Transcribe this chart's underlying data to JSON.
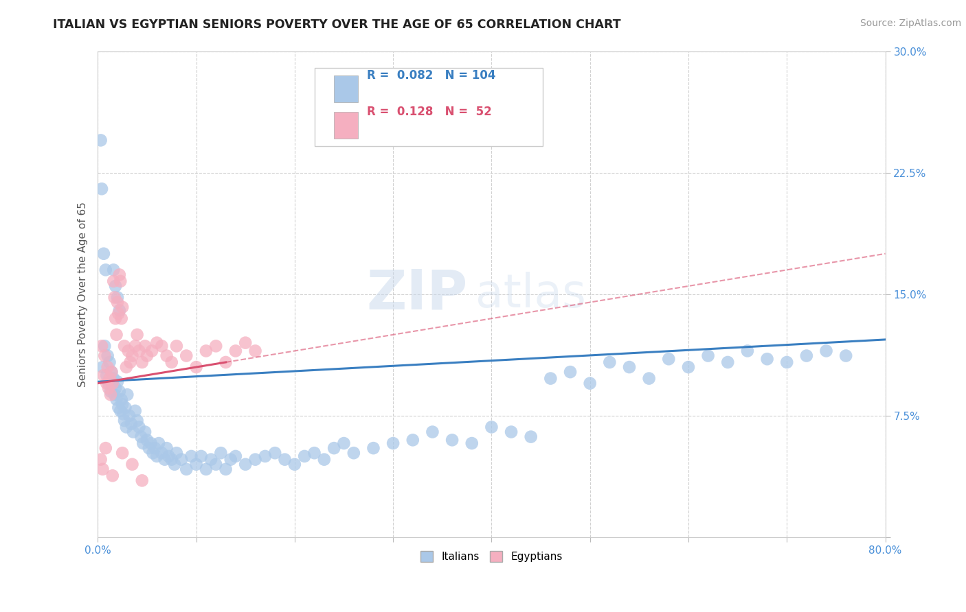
{
  "title": "ITALIAN VS EGYPTIAN SENIORS POVERTY OVER THE AGE OF 65 CORRELATION CHART",
  "source": "Source: ZipAtlas.com",
  "ylabel_label": "Seniors Poverty Over the Age of 65",
  "xlim": [
    0.0,
    0.8
  ],
  "ylim": [
    0.0,
    0.3
  ],
  "xticks": [
    0.0,
    0.1,
    0.2,
    0.3,
    0.4,
    0.5,
    0.6,
    0.7,
    0.8
  ],
  "yticks": [
    0.0,
    0.075,
    0.15,
    0.225,
    0.3
  ],
  "xticklabels_show": [
    "0.0%",
    "",
    "",
    "",
    "",
    "",
    "",
    "",
    "80.0%"
  ],
  "yticklabels": [
    "",
    "7.5%",
    "15.0%",
    "22.5%",
    "30.0%"
  ],
  "italian_R": 0.082,
  "italian_N": 104,
  "egyptian_R": 0.128,
  "egyptian_N": 52,
  "italian_color": "#aac8e8",
  "egyptian_color": "#f5afc0",
  "italian_line_color": "#3a7fc1",
  "egyptian_line_color": "#d95070",
  "watermark_zip": "ZIP",
  "watermark_atlas": "atlas",
  "background_color": "#ffffff",
  "legend_italian_label": "Italians",
  "legend_egyptian_label": "Egyptians",
  "italian_scatter_x": [
    0.005,
    0.007,
    0.009,
    0.01,
    0.011,
    0.012,
    0.013,
    0.014,
    0.015,
    0.016,
    0.017,
    0.018,
    0.019,
    0.02,
    0.021,
    0.022,
    0.023,
    0.024,
    0.025,
    0.026,
    0.027,
    0.028,
    0.029,
    0.03,
    0.032,
    0.034,
    0.036,
    0.038,
    0.04,
    0.042,
    0.044,
    0.046,
    0.048,
    0.05,
    0.052,
    0.054,
    0.056,
    0.058,
    0.06,
    0.062,
    0.065,
    0.068,
    0.07,
    0.072,
    0.075,
    0.078,
    0.08,
    0.085,
    0.09,
    0.095,
    0.1,
    0.105,
    0.11,
    0.115,
    0.12,
    0.125,
    0.13,
    0.135,
    0.14,
    0.15,
    0.16,
    0.17,
    0.18,
    0.19,
    0.2,
    0.21,
    0.22,
    0.23,
    0.24,
    0.25,
    0.26,
    0.28,
    0.3,
    0.32,
    0.34,
    0.36,
    0.38,
    0.4,
    0.42,
    0.44,
    0.46,
    0.48,
    0.5,
    0.52,
    0.54,
    0.56,
    0.58,
    0.6,
    0.62,
    0.64,
    0.66,
    0.68,
    0.7,
    0.72,
    0.74,
    0.76,
    0.003,
    0.004,
    0.006,
    0.008,
    0.016,
    0.018,
    0.02,
    0.022
  ],
  "italian_scatter_y": [
    0.105,
    0.118,
    0.1,
    0.112,
    0.095,
    0.108,
    0.09,
    0.102,
    0.095,
    0.098,
    0.088,
    0.092,
    0.085,
    0.096,
    0.08,
    0.09,
    0.078,
    0.085,
    0.082,
    0.076,
    0.072,
    0.08,
    0.068,
    0.088,
    0.075,
    0.07,
    0.065,
    0.078,
    0.072,
    0.068,
    0.062,
    0.058,
    0.065,
    0.06,
    0.055,
    0.058,
    0.052,
    0.055,
    0.05,
    0.058,
    0.052,
    0.048,
    0.055,
    0.05,
    0.048,
    0.045,
    0.052,
    0.048,
    0.042,
    0.05,
    0.045,
    0.05,
    0.042,
    0.048,
    0.045,
    0.052,
    0.042,
    0.048,
    0.05,
    0.045,
    0.048,
    0.05,
    0.052,
    0.048,
    0.045,
    0.05,
    0.052,
    0.048,
    0.055,
    0.058,
    0.052,
    0.055,
    0.058,
    0.06,
    0.065,
    0.06,
    0.058,
    0.068,
    0.065,
    0.062,
    0.098,
    0.102,
    0.095,
    0.108,
    0.105,
    0.098,
    0.11,
    0.105,
    0.112,
    0.108,
    0.115,
    0.11,
    0.108,
    0.112,
    0.115,
    0.112,
    0.245,
    0.215,
    0.175,
    0.165,
    0.165,
    0.155,
    0.148,
    0.14
  ],
  "egyptian_scatter_x": [
    0.004,
    0.006,
    0.007,
    0.009,
    0.01,
    0.011,
    0.012,
    0.013,
    0.014,
    0.015,
    0.016,
    0.017,
    0.018,
    0.019,
    0.02,
    0.021,
    0.022,
    0.023,
    0.024,
    0.025,
    0.027,
    0.029,
    0.031,
    0.033,
    0.035,
    0.038,
    0.04,
    0.042,
    0.045,
    0.048,
    0.05,
    0.055,
    0.06,
    0.065,
    0.07,
    0.075,
    0.08,
    0.09,
    0.1,
    0.11,
    0.12,
    0.13,
    0.14,
    0.15,
    0.16,
    0.003,
    0.005,
    0.008,
    0.015,
    0.025,
    0.035,
    0.045
  ],
  "egyptian_scatter_y": [
    0.118,
    0.1,
    0.112,
    0.095,
    0.105,
    0.092,
    0.098,
    0.088,
    0.102,
    0.095,
    0.158,
    0.148,
    0.135,
    0.125,
    0.145,
    0.138,
    0.162,
    0.158,
    0.135,
    0.142,
    0.118,
    0.105,
    0.115,
    0.108,
    0.112,
    0.118,
    0.125,
    0.115,
    0.108,
    0.118,
    0.112,
    0.115,
    0.12,
    0.118,
    0.112,
    0.108,
    0.118,
    0.112,
    0.105,
    0.115,
    0.118,
    0.108,
    0.115,
    0.12,
    0.115,
    0.048,
    0.042,
    0.055,
    0.038,
    0.052,
    0.045,
    0.035
  ]
}
